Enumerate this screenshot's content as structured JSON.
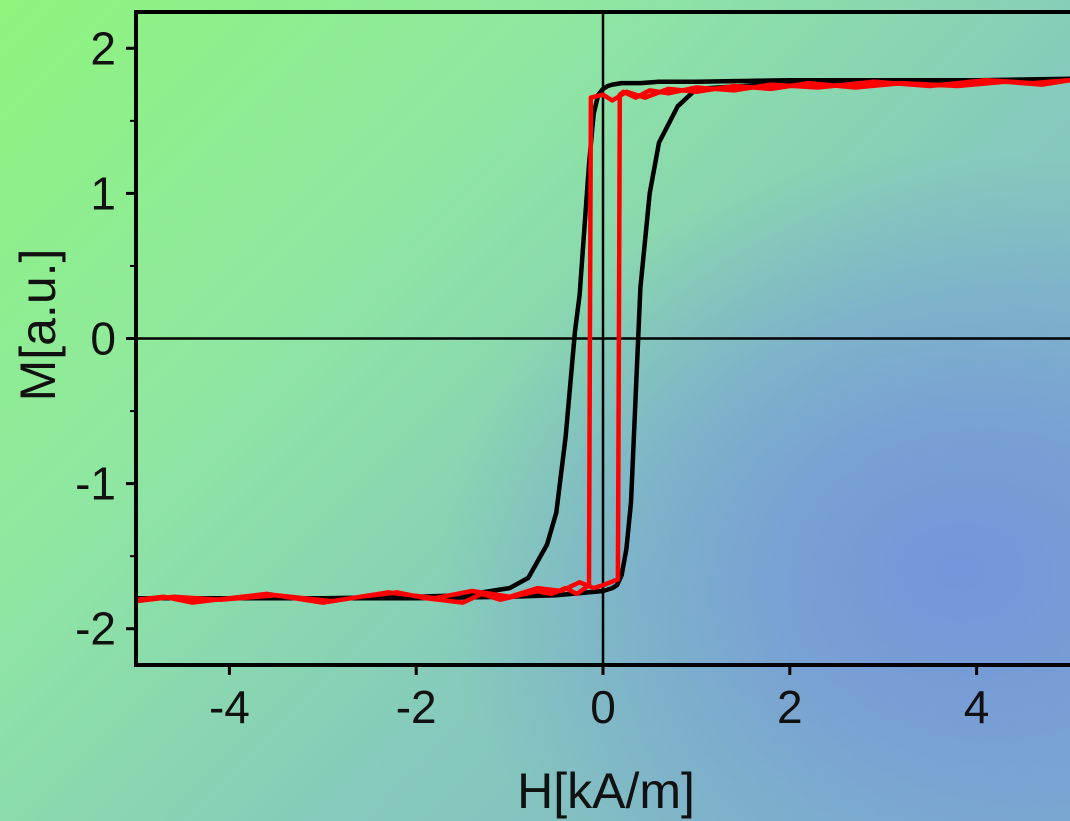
{
  "chart_data": {
    "type": "line",
    "title": "",
    "xlabel": "H[kA/m]",
    "ylabel": "M[a.u.]",
    "xlim": [
      -5,
      5
    ],
    "ylim": [
      -2.25,
      2.25
    ],
    "x_ticks": [
      -4,
      -2,
      0,
      2,
      4
    ],
    "y_ticks": [
      -2,
      -1,
      0,
      1,
      2
    ],
    "x_tick_labels": [
      "-4",
      "-2",
      "0",
      "2",
      "4"
    ],
    "y_tick_labels": [
      "-2",
      "-1",
      "0",
      "1",
      "2"
    ],
    "grid": false,
    "zero_lines": true,
    "legend": "none",
    "series": [
      {
        "color": "#000000",
        "x": [
          -5,
          -4,
          -3,
          -2,
          -1.5,
          -1,
          -0.8,
          -0.6,
          -0.5,
          -0.4,
          -0.3,
          -0.25,
          -0.2,
          -0.15,
          -0.1,
          -0.05,
          0,
          0.05,
          0.1,
          0.2,
          0.4,
          0.6,
          1.0,
          2,
          3,
          4,
          5,
          4,
          3,
          2,
          1,
          0.8,
          0.6,
          0.5,
          0.4,
          0.3,
          0.25,
          0.2,
          0.15,
          0.1,
          0,
          -0.5,
          -1,
          -2,
          -3,
          -4,
          -5
        ],
        "y": [
          -1.79,
          -1.79,
          -1.79,
          -1.78,
          -1.77,
          -1.72,
          -1.65,
          -1.42,
          -1.2,
          -0.68,
          0.05,
          0.3,
          0.75,
          1.2,
          1.55,
          1.68,
          1.72,
          1.74,
          1.75,
          1.76,
          1.76,
          1.77,
          1.77,
          1.78,
          1.78,
          1.78,
          1.79,
          1.78,
          1.77,
          1.76,
          1.72,
          1.6,
          1.35,
          1.0,
          0.35,
          -1.13,
          -1.45,
          -1.63,
          -1.7,
          -1.72,
          -1.74,
          -1.77,
          -1.78,
          -1.79,
          -1.79,
          -1.79,
          -1.79
        ]
      },
      {
        "color": "#ff0000",
        "x": [
          -5,
          -4.7,
          -4.4,
          -4.0,
          -3.6,
          -3.0,
          -2.6,
          -2.2,
          -1.9,
          -1.5,
          -1.3,
          -1.1,
          -0.9,
          -0.7,
          -0.55,
          -0.4,
          -0.28,
          -0.15,
          -0.14,
          -0.13,
          0.0,
          0.1,
          0.25,
          0.45,
          0.7,
          1.0,
          1.4,
          1.8,
          2.2,
          2.7,
          3.2,
          3.8,
          4.3,
          4.7,
          5,
          4.6,
          4.1,
          3.5,
          2.9,
          2.3,
          1.8,
          1.4,
          1.0,
          0.7,
          0.5,
          0.35,
          0.22,
          0.18,
          0.17,
          0.16,
          0.0,
          -0.1,
          -0.25,
          -0.45,
          -0.7,
          -1.0,
          -1.4,
          -1.8,
          -2.3,
          -2.9,
          -3.5,
          -4.1,
          -4.6,
          -5
        ],
        "y": [
          -1.8,
          -1.78,
          -1.82,
          -1.79,
          -1.76,
          -1.82,
          -1.78,
          -1.75,
          -1.79,
          -1.82,
          -1.76,
          -1.8,
          -1.77,
          -1.74,
          -1.76,
          -1.72,
          -1.76,
          -1.7,
          0.0,
          1.66,
          1.68,
          1.64,
          1.7,
          1.66,
          1.72,
          1.7,
          1.74,
          1.72,
          1.76,
          1.73,
          1.76,
          1.74,
          1.77,
          1.75,
          1.78,
          1.76,
          1.78,
          1.74,
          1.77,
          1.73,
          1.75,
          1.71,
          1.73,
          1.69,
          1.71,
          1.66,
          1.7,
          1.68,
          0.0,
          -1.66,
          -1.7,
          -1.72,
          -1.68,
          -1.74,
          -1.72,
          -1.78,
          -1.74,
          -1.79,
          -1.75,
          -1.81,
          -1.77,
          -1.8,
          -1.78,
          -1.81
        ]
      }
    ]
  }
}
